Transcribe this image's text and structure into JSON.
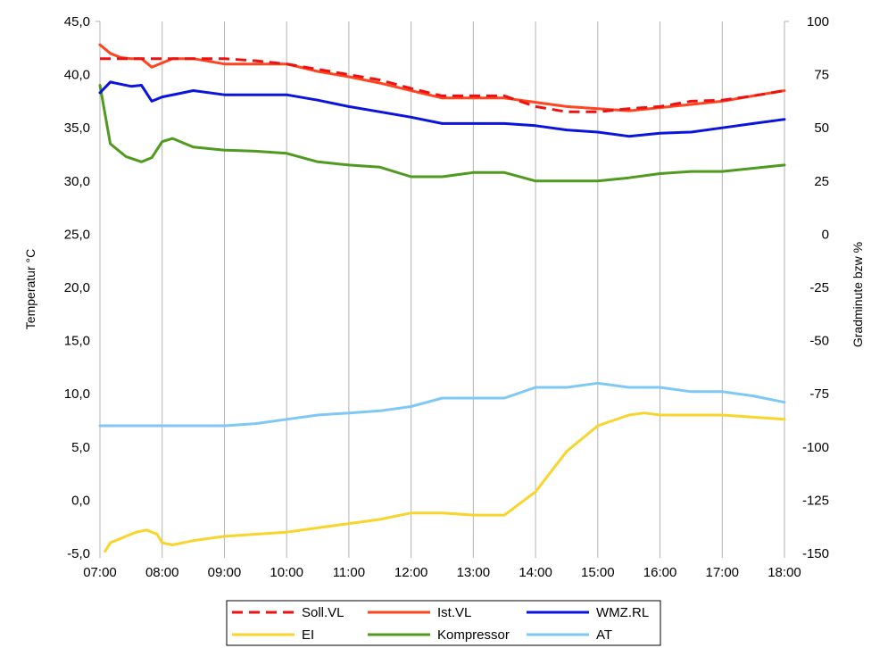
{
  "chart_data": {
    "type": "line",
    "ylabel": "Temperatur °C",
    "y2label": "Gradminute bzw %",
    "x_ticks": [
      "07:00",
      "08:00",
      "09:00",
      "10:00",
      "11:00",
      "12:00",
      "13:00",
      "14:00",
      "15:00",
      "16:00",
      "17:00",
      "18:00"
    ],
    "y_ticks": [
      "-5,0",
      "0,0",
      "5,0",
      "10,0",
      "15,0",
      "20,0",
      "25,0",
      "30,0",
      "35,0",
      "40,0",
      "45,0"
    ],
    "y2_ticks": [
      "-150",
      "-125",
      "-100",
      "-75",
      "-50",
      "-25",
      "0",
      "25",
      "50",
      "75",
      "100"
    ],
    "xlim": [
      "07:00",
      "18:00"
    ],
    "ylim": [
      -5,
      45
    ],
    "y2lim": [
      -150,
      100
    ],
    "grid": "vertical",
    "legend_position": "bottom",
    "series": [
      {
        "name": "Soll.VL",
        "axis": "left",
        "color": "#ee1111",
        "dash": "dashed",
        "points": [
          [
            "07:00",
            41.5
          ],
          [
            "07:25",
            41.5
          ],
          [
            "07:55",
            41.5
          ],
          [
            "08:10",
            41.5
          ],
          [
            "08:30",
            41.5
          ],
          [
            "09:00",
            41.5
          ],
          [
            "09:30",
            41.3
          ],
          [
            "10:00",
            41.0
          ],
          [
            "10:30",
            40.5
          ],
          [
            "11:00",
            40.0
          ],
          [
            "11:30",
            39.5
          ],
          [
            "12:00",
            38.7
          ],
          [
            "12:30",
            38.0
          ],
          [
            "13:00",
            38.0
          ],
          [
            "13:30",
            38.0
          ],
          [
            "14:00",
            37.0
          ],
          [
            "14:30",
            36.5
          ],
          [
            "15:00",
            36.5
          ],
          [
            "15:30",
            36.8
          ],
          [
            "16:00",
            37.0
          ],
          [
            "16:30",
            37.5
          ],
          [
            "17:00",
            37.6
          ],
          [
            "17:30",
            38.0
          ],
          [
            "18:00",
            38.5
          ]
        ]
      },
      {
        "name": "Ist.VL",
        "axis": "left",
        "color": "#ff4420",
        "dash": "solid",
        "points": [
          [
            "07:00",
            42.8
          ],
          [
            "07:10",
            42.0
          ],
          [
            "07:20",
            41.6
          ],
          [
            "07:30",
            41.5
          ],
          [
            "07:40",
            41.5
          ],
          [
            "07:50",
            40.7
          ],
          [
            "08:00",
            41.1
          ],
          [
            "08:10",
            41.5
          ],
          [
            "08:30",
            41.5
          ],
          [
            "09:00",
            41.0
          ],
          [
            "09:30",
            41.0
          ],
          [
            "10:00",
            41.0
          ],
          [
            "10:30",
            40.3
          ],
          [
            "11:00",
            39.8
          ],
          [
            "11:30",
            39.2
          ],
          [
            "12:00",
            38.5
          ],
          [
            "12:30",
            37.8
          ],
          [
            "13:00",
            37.8
          ],
          [
            "13:30",
            37.8
          ],
          [
            "14:00",
            37.4
          ],
          [
            "14:30",
            37.0
          ],
          [
            "15:00",
            36.8
          ],
          [
            "15:30",
            36.6
          ],
          [
            "16:00",
            36.9
          ],
          [
            "16:30",
            37.2
          ],
          [
            "17:00",
            37.5
          ],
          [
            "17:30",
            38.0
          ],
          [
            "18:00",
            38.5
          ]
        ]
      },
      {
        "name": "WMZ.RL",
        "axis": "left",
        "color": "#0a14dc",
        "dash": "solid",
        "points": [
          [
            "07:00",
            38.3
          ],
          [
            "07:10",
            39.3
          ],
          [
            "07:20",
            39.1
          ],
          [
            "07:30",
            38.9
          ],
          [
            "07:40",
            39.0
          ],
          [
            "07:50",
            37.5
          ],
          [
            "08:00",
            37.9
          ],
          [
            "08:15",
            38.2
          ],
          [
            "08:30",
            38.5
          ],
          [
            "09:00",
            38.1
          ],
          [
            "09:30",
            38.1
          ],
          [
            "10:00",
            38.1
          ],
          [
            "10:30",
            37.6
          ],
          [
            "11:00",
            37.0
          ],
          [
            "11:30",
            36.5
          ],
          [
            "12:00",
            36.0
          ],
          [
            "12:30",
            35.4
          ],
          [
            "13:00",
            35.4
          ],
          [
            "13:30",
            35.4
          ],
          [
            "14:00",
            35.2
          ],
          [
            "14:30",
            34.8
          ],
          [
            "15:00",
            34.6
          ],
          [
            "15:30",
            34.2
          ],
          [
            "16:00",
            34.5
          ],
          [
            "16:30",
            34.6
          ],
          [
            "17:00",
            35.0
          ],
          [
            "17:30",
            35.4
          ],
          [
            "18:00",
            35.8
          ]
        ]
      },
      {
        "name": "EI",
        "axis": "right",
        "color": "#f8d42c",
        "dash": "solid",
        "points": [
          [
            "07:05",
            -149
          ],
          [
            "07:10",
            -145
          ],
          [
            "07:25",
            -142
          ],
          [
            "07:35",
            -140
          ],
          [
            "07:45",
            -139
          ],
          [
            "07:55",
            -141
          ],
          [
            "08:00",
            -145
          ],
          [
            "08:10",
            -146
          ],
          [
            "08:30",
            -144
          ],
          [
            "09:00",
            -142
          ],
          [
            "09:30",
            -141
          ],
          [
            "10:00",
            -140
          ],
          [
            "10:30",
            -138
          ],
          [
            "11:00",
            -136
          ],
          [
            "11:30",
            -134
          ],
          [
            "12:00",
            -131
          ],
          [
            "12:30",
            -131
          ],
          [
            "13:00",
            -132
          ],
          [
            "13:30",
            -132
          ],
          [
            "14:00",
            -121
          ],
          [
            "14:30",
            -102
          ],
          [
            "15:00",
            -90
          ],
          [
            "15:30",
            -85
          ],
          [
            "15:45",
            -84
          ],
          [
            "16:00",
            -85
          ],
          [
            "16:30",
            -85
          ],
          [
            "17:00",
            -85
          ],
          [
            "17:30",
            -86
          ],
          [
            "18:00",
            -87
          ]
        ]
      },
      {
        "name": "Kompressor",
        "axis": "left",
        "color": "#4f9a1f",
        "dash": "solid",
        "points": [
          [
            "07:00",
            39.0
          ],
          [
            "07:10",
            33.5
          ],
          [
            "07:25",
            32.3
          ],
          [
            "07:40",
            31.8
          ],
          [
            "07:50",
            32.2
          ],
          [
            "08:00",
            33.7
          ],
          [
            "08:10",
            34.0
          ],
          [
            "08:30",
            33.2
          ],
          [
            "09:00",
            32.9
          ],
          [
            "09:30",
            32.8
          ],
          [
            "10:00",
            32.6
          ],
          [
            "10:30",
            31.8
          ],
          [
            "11:00",
            31.5
          ],
          [
            "11:30",
            31.3
          ],
          [
            "12:00",
            30.4
          ],
          [
            "12:30",
            30.4
          ],
          [
            "13:00",
            30.8
          ],
          [
            "13:30",
            30.8
          ],
          [
            "14:00",
            30.0
          ],
          [
            "14:30",
            30.0
          ],
          [
            "15:00",
            30.0
          ],
          [
            "15:30",
            30.3
          ],
          [
            "16:00",
            30.7
          ],
          [
            "16:30",
            30.9
          ],
          [
            "17:00",
            30.9
          ],
          [
            "17:30",
            31.2
          ],
          [
            "18:00",
            31.5
          ]
        ]
      },
      {
        "name": "AT",
        "axis": "right",
        "color": "#7fc8f5",
        "dash": "solid",
        "points": [
          [
            "07:00",
            -90
          ],
          [
            "07:30",
            -90
          ],
          [
            "08:00",
            -90
          ],
          [
            "08:30",
            -90
          ],
          [
            "09:00",
            -90
          ],
          [
            "09:30",
            -89
          ],
          [
            "10:00",
            -87
          ],
          [
            "10:30",
            -85
          ],
          [
            "11:00",
            -84
          ],
          [
            "11:30",
            -83
          ],
          [
            "12:00",
            -81
          ],
          [
            "12:30",
            -77
          ],
          [
            "13:00",
            -77
          ],
          [
            "13:30",
            -77
          ],
          [
            "14:00",
            -72
          ],
          [
            "14:30",
            -72
          ],
          [
            "15:00",
            -70
          ],
          [
            "15:30",
            -72
          ],
          [
            "16:00",
            -72
          ],
          [
            "16:30",
            -74
          ],
          [
            "17:00",
            -74
          ],
          [
            "17:30",
            -76
          ],
          [
            "18:00",
            -79
          ]
        ]
      }
    ]
  }
}
